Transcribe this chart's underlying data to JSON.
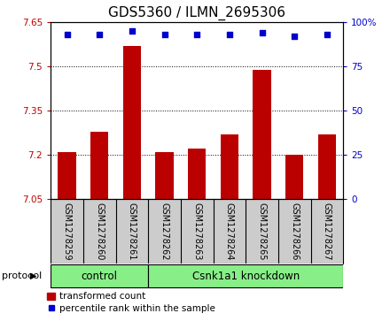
{
  "title": "GDS5360 / ILMN_2695306",
  "samples": [
    "GSM1278259",
    "GSM1278260",
    "GSM1278261",
    "GSM1278262",
    "GSM1278263",
    "GSM1278264",
    "GSM1278265",
    "GSM1278266",
    "GSM1278267"
  ],
  "bar_values": [
    7.21,
    7.28,
    7.57,
    7.21,
    7.22,
    7.27,
    7.49,
    7.2,
    7.27
  ],
  "percentile_values": [
    93,
    93,
    95,
    93,
    93,
    93,
    94,
    92,
    93
  ],
  "ylim_left": [
    7.05,
    7.65
  ],
  "ylim_right": [
    0,
    100
  ],
  "yticks_left": [
    7.05,
    7.2,
    7.35,
    7.5,
    7.65
  ],
  "yticks_right": [
    0,
    25,
    50,
    75,
    100
  ],
  "bar_color": "#bb0000",
  "dot_color": "#0000cc",
  "bar_width": 0.55,
  "control_label": "control",
  "knockdown_label": "Csnk1a1 knockdown",
  "protocol_label": "protocol",
  "legend_bar_label": "transformed count",
  "legend_dot_label": "percentile rank within the sample",
  "group_color": "#88ee88",
  "sample_box_color": "#cccccc",
  "title_fontsize": 11,
  "tick_fontsize": 7.5,
  "sample_fontsize": 7,
  "group_fontsize": 8.5,
  "legend_fontsize": 7.5
}
